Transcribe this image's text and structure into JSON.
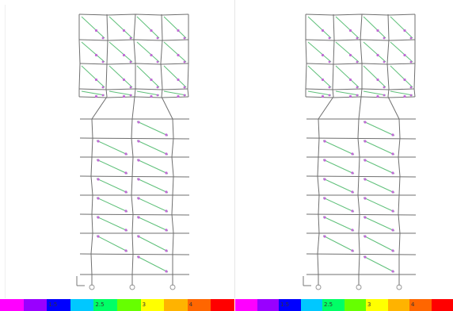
{
  "view_panes": [
    {
      "name": "left"
    },
    {
      "name": "right"
    }
  ],
  "legend": {
    "colors": [
      "#ff00ff",
      "#9900ff",
      "#0000ff",
      "#00c8ff",
      "#00ff66",
      "#66ff00",
      "#ffff00",
      "#ffb300",
      "#ff6600",
      "#ff0000"
    ],
    "tick_labels": [
      "",
      "",
      "1.5",
      "",
      "2.5",
      "",
      "3",
      "",
      "4",
      ""
    ]
  },
  "model_colors": {
    "frame_member": "#6f6f6f",
    "diagonal": "#5fc07a",
    "hinge_marker": "#c06ad6",
    "support": "#999999"
  }
}
